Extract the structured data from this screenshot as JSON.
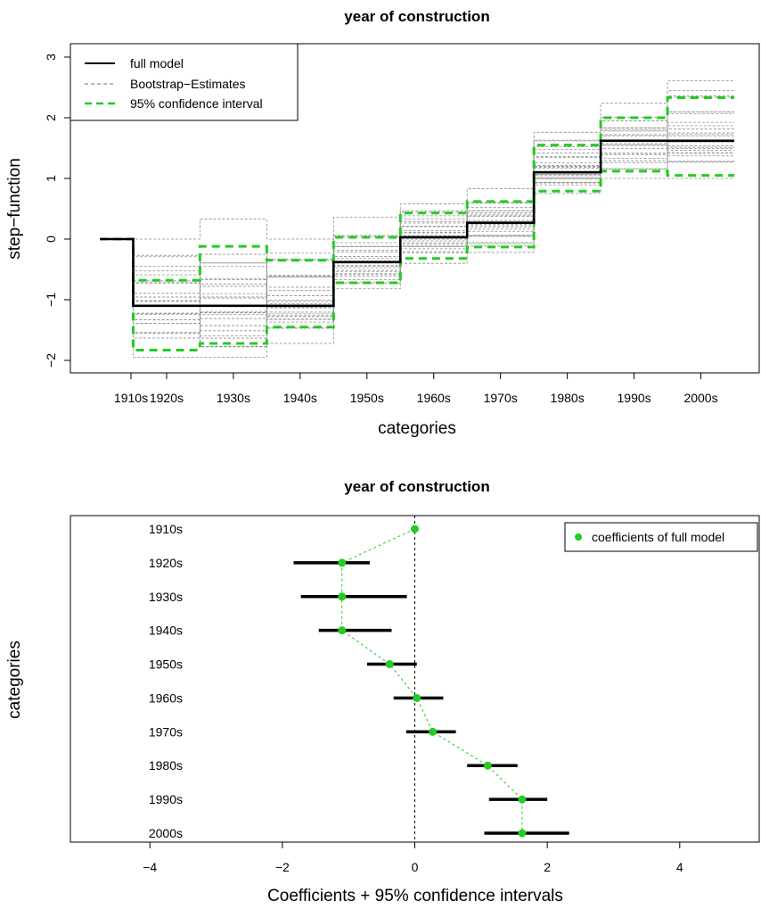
{
  "chart_data": [
    {
      "type": "line",
      "subtype": "step-function",
      "title": "year of construction",
      "xlabel": "categories",
      "ylabel": "step−function",
      "categories": [
        "1910s",
        "1920s",
        "1930s",
        "1940s",
        "1950s",
        "1960s",
        "1970s",
        "1980s",
        "1990s",
        "2000s"
      ],
      "yticks": [
        "−2",
        "−1",
        "0",
        "1",
        "2",
        "3"
      ],
      "ylim": [
        -2.1,
        3.1
      ],
      "legend_position": "top-left",
      "legend": [
        "full model",
        "Bootstrap−Estimates",
        "95% confidence interval"
      ],
      "series": [
        {
          "name": "full model",
          "values": [
            0,
            -1.1,
            -1.1,
            -1.1,
            -0.38,
            0.03,
            0.27,
            1.1,
            1.62,
            1.62
          ],
          "color": "#000000",
          "style": "solid"
        },
        {
          "name": "95% confidence interval",
          "role": "lower",
          "values": [
            0,
            -1.83,
            -1.72,
            -1.45,
            -0.72,
            -0.32,
            -0.13,
            0.79,
            1.12,
            1.05
          ],
          "color": "#22cc22",
          "style": "dashed"
        },
        {
          "name": "95% confidence interval",
          "role": "upper",
          "values": [
            0,
            -0.68,
            -0.12,
            -0.35,
            0.03,
            0.43,
            0.62,
            1.55,
            2.0,
            2.33
          ],
          "color": "#22cc22",
          "style": "dashed"
        },
        {
          "name": "Bootstrap−Estimates",
          "role": "range",
          "lows": [
            0,
            -1.95,
            -1.95,
            -1.72,
            -0.82,
            -0.4,
            -0.22,
            0.75,
            1.0,
            1.0
          ],
          "highs": [
            0,
            0.0,
            0.33,
            0.0,
            0.36,
            0.58,
            0.83,
            1.76,
            2.24,
            2.61
          ],
          "color": "#8c8c8c",
          "style": "dashed"
        }
      ]
    },
    {
      "type": "scatter",
      "subtype": "coefficient plot with interval bars",
      "title": "year of construction",
      "xlabel": "Coefficients + 95% confidence intervals",
      "ylabel": "categories",
      "categories": [
        "1910s",
        "1920s",
        "1930s",
        "1940s",
        "1950s",
        "1960s",
        "1970s",
        "1980s",
        "1990s",
        "2000s"
      ],
      "xticks": [
        "−4",
        "−2",
        "0",
        "2",
        "4"
      ],
      "xlim": [
        -5.2,
        5.2
      ],
      "legend_position": "top-right",
      "legend": [
        "coefficients of full model"
      ],
      "reference_line_x": 0,
      "series": [
        {
          "name": "coefficients of full model",
          "values": [
            0,
            -1.1,
            -1.1,
            -1.1,
            -0.38,
            0.03,
            0.27,
            1.1,
            1.62,
            1.62
          ],
          "color": "#22cc22"
        },
        {
          "name": "95% confidence interval",
          "lows": [
            0,
            -1.83,
            -1.72,
            -1.45,
            -0.72,
            -0.32,
            -0.13,
            0.79,
            1.12,
            1.05
          ],
          "highs": [
            0,
            -0.68,
            -0.12,
            -0.35,
            0.03,
            0.43,
            0.62,
            1.55,
            2.0,
            2.33
          ],
          "color": "#000000"
        }
      ]
    }
  ]
}
